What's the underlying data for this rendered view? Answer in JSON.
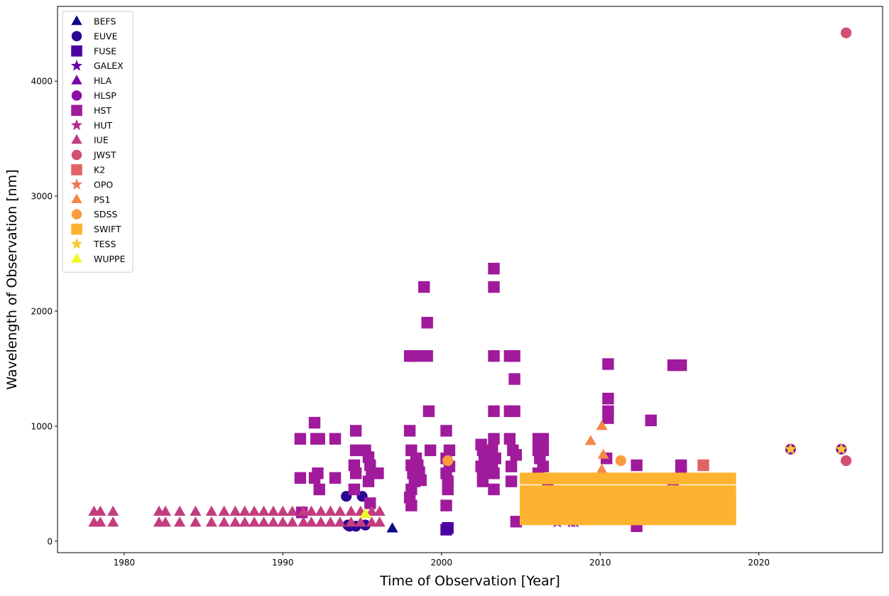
{
  "chart_data": {
    "type": "scatter",
    "title": "",
    "xlabel": "Time of Observation [Year]",
    "ylabel": "Wavelength of Observation [nm]",
    "xlim": [
      1975.8,
      2027.8
    ],
    "ylim": [
      -100,
      4650
    ],
    "xticks": [
      1980,
      1990,
      2000,
      2010,
      2020
    ],
    "yticks": [
      0,
      1000,
      2000,
      3000,
      4000
    ],
    "grid": false,
    "legend_position": "upper-left",
    "series": [
      {
        "name": "BEFS",
        "marker": "triangle",
        "color": "#0d0887",
        "x": [
          1996.9
        ],
        "y": [
          110
        ]
      },
      {
        "name": "EUVE",
        "marker": "circle",
        "color": "#2c0594",
        "x": [
          1994.0,
          1994.2,
          1994.6,
          1995.0,
          1994.1,
          1995.2
        ],
        "y": [
          390,
          130,
          130,
          390,
          140,
          140
        ]
      },
      {
        "name": "FUSE",
        "marker": "square",
        "color": "#4c02a1",
        "x": [
          2000.3,
          2000.4
        ],
        "y": [
          100,
          115
        ]
      },
      {
        "name": "GALEX",
        "marker": "star",
        "color": "#6a00a8",
        "x": [
          2007.3,
          2007.6,
          2008.2,
          2008.4,
          2008.3
        ],
        "y": [
          165,
          230,
          165,
          165,
          230
        ]
      },
      {
        "name": "HLA",
        "marker": "triangle",
        "color": "#7e03a8",
        "x": [],
        "y": []
      },
      {
        "name": "HLSP",
        "marker": "circle",
        "color": "#8f0da4",
        "x": [
          2022.0,
          2025.2
        ],
        "y": [
          800,
          800
        ]
      },
      {
        "name": "HST",
        "marker": "square",
        "color": "#a01a9c",
        "x": [
          1991.1,
          1991.1,
          1991.2,
          1992.0,
          1992.1,
          1992.0,
          1992.3,
          1992.2,
          1992.3,
          1993.3,
          1993.3,
          1994.6,
          1994.6,
          1994.5,
          1994.6,
          1994.5,
          1995.2,
          1995.4,
          1995.5,
          1995.6,
          1995.4,
          1995.5,
          1996.0,
          1998.0,
          1998.1,
          1998.4,
          1998.5,
          1998.6,
          1998.7,
          1998.4,
          1998.0,
          1998.1,
          1998.2,
          1998.3,
          1998.1,
          1998.0,
          1998.1,
          1998.9,
          1999.1,
          1999.1,
          1999.2,
          1999.3,
          2000.3,
          2000.5,
          2000.3,
          2000.5,
          2000.3,
          2000.4,
          2000.4,
          2000.3,
          2002.5,
          2002.6,
          2002.7,
          2002.5,
          2002.6,
          2002.6,
          2003.3,
          2003.3,
          2003.3,
          2003.3,
          2003.3,
          2003.2,
          2003.4,
          2003.2,
          2003.3,
          2003.3,
          2004.3,
          2004.6,
          2004.3,
          2004.6,
          2004.6,
          2004.3,
          2004.5,
          2004.4,
          2004.4,
          2004.7,
          2004.7,
          2006.1,
          2006.4,
          2006.1,
          2006.4,
          2006.2,
          2006.4,
          2006.1,
          2006.7,
          2010.5,
          2010.5,
          2010.5,
          2010.5,
          2010.4,
          2012.3,
          2012.3,
          2013.2,
          2014.6,
          2015.1,
          2015.1,
          2015.1,
          2014.6
        ],
        "y": [
          890,
          550,
          250,
          1030,
          890,
          550,
          890,
          590,
          450,
          890,
          550,
          960,
          790,
          660,
          590,
          450,
          790,
          730,
          660,
          590,
          520,
          330,
          590,
          960,
          790,
          720,
          660,
          600,
          530,
          1610,
          1610,
          660,
          590,
          520,
          450,
          380,
          310,
          2210,
          1900,
          1610,
          1130,
          790,
          960,
          790,
          720,
          650,
          590,
          520,
          450,
          310,
          840,
          790,
          720,
          650,
          590,
          520,
          2370,
          2210,
          1610,
          1130,
          890,
          790,
          720,
          650,
          590,
          450,
          1610,
          1610,
          1130,
          1130,
          1410,
          890,
          790,
          650,
          520,
          750,
          170,
          890,
          890,
          790,
          790,
          720,
          650,
          590,
          520,
          1540,
          1240,
          1130,
          1070,
          720,
          660,
          130,
          1050,
          1530,
          1530,
          660,
          590,
          520
        ]
      },
      {
        "name": "HUT",
        "marker": "star",
        "color": "#b12a90",
        "x": [],
        "y": []
      },
      {
        "name": "IUE",
        "marker": "triangle",
        "color": "#c33d80",
        "x": [
          1978.1,
          1978.5,
          1979.3,
          1982.2,
          1982.6,
          1983.5,
          1984.5,
          1985.5,
          1986.3,
          1987.0,
          1987.6,
          1988.2,
          1988.8,
          1989.4,
          1990.0,
          1990.6,
          1991.3,
          1991.8,
          1992.4,
          1993.0,
          1993.6,
          1994.3,
          1994.9,
          1995.6,
          1996.1,
          1978.1,
          1978.5,
          1979.3,
          1982.2,
          1982.6,
          1983.5,
          1984.5,
          1985.5,
          1986.3,
          1987.0,
          1987.6,
          1988.2,
          1988.8,
          1989.4,
          1990.0,
          1990.6,
          1991.3,
          1991.8,
          1992.4,
          1993.0,
          1993.6,
          1994.3,
          1994.9,
          1995.6,
          1996.1
        ],
        "y": [
          255,
          255,
          255,
          255,
          255,
          255,
          255,
          255,
          255,
          255,
          255,
          255,
          255,
          255,
          255,
          255,
          255,
          255,
          255,
          255,
          255,
          255,
          255,
          255,
          255,
          160,
          160,
          160,
          160,
          160,
          160,
          160,
          160,
          160,
          160,
          160,
          160,
          160,
          160,
          160,
          160,
          160,
          160,
          160,
          160,
          160,
          160,
          160,
          160,
          160
        ]
      },
      {
        "name": "JWST",
        "marker": "circle",
        "color": "#d24f71",
        "x": [
          2025.5,
          2025.5
        ],
        "y": [
          4420,
          700
        ]
      },
      {
        "name": "K2",
        "marker": "square",
        "color": "#e16462",
        "x": [
          2016.5
        ],
        "y": [
          660
        ]
      },
      {
        "name": "OPO",
        "marker": "star",
        "color": "#ec7853",
        "x": [],
        "y": []
      },
      {
        "name": "PS1",
        "marker": "triangle",
        "color": "#f48849",
        "x": [
          2009.4,
          2010.1,
          2010.2,
          2010.1
        ],
        "y": [
          870,
          1000,
          750,
          620
        ]
      },
      {
        "name": "SDSS",
        "marker": "circle",
        "color": "#fb9b3f",
        "x": [
          2000.4,
          2011.3
        ],
        "y": [
          700,
          700
        ]
      },
      {
        "name": "SWIFT",
        "marker": "square",
        "color": "#fdb32f",
        "x": [
          2005.3,
          2005.8,
          2006.3,
          2006.8,
          2007.3,
          2007.8,
          2008.3,
          2008.8,
          2009.3,
          2009.8,
          2010.3,
          2010.8,
          2011.3,
          2011.8,
          2012.3,
          2012.8,
          2013.3,
          2013.8,
          2014.3,
          2014.8,
          2015.3,
          2015.8,
          2016.3,
          2016.8,
          2017.3,
          2017.8,
          2018.2,
          2005.3,
          2005.8,
          2006.3,
          2006.8,
          2007.3,
          2007.8,
          2008.3,
          2008.8,
          2009.3,
          2009.8,
          2010.3,
          2010.8,
          2011.3,
          2011.8,
          2012.3,
          2012.8,
          2013.3,
          2013.8,
          2014.3,
          2014.8,
          2015.3,
          2015.8,
          2016.3,
          2016.8,
          2017.3,
          2017.8,
          2018.2,
          2005.3,
          2005.8,
          2006.3,
          2006.8,
          2007.3,
          2007.8,
          2008.3,
          2008.8,
          2009.3,
          2009.8,
          2010.3,
          2010.8,
          2011.3,
          2011.8,
          2012.3,
          2012.8,
          2013.3,
          2013.8,
          2014.3,
          2014.8,
          2015.3,
          2015.8,
          2016.3,
          2016.8,
          2017.3,
          2017.8,
          2018.2,
          2005.3,
          2005.8,
          2006.3,
          2006.8,
          2007.3,
          2007.8,
          2008.3,
          2008.8,
          2009.3,
          2009.8,
          2010.3,
          2010.8,
          2011.3,
          2011.8,
          2012.3,
          2012.8,
          2013.3,
          2013.8,
          2014.3,
          2014.8,
          2015.3,
          2015.8,
          2016.3,
          2016.8,
          2017.3,
          2017.8,
          2018.2,
          2005.3,
          2005.8,
          2006.3,
          2006.8,
          2007.3,
          2007.8,
          2008.3,
          2008.8,
          2009.3,
          2009.8,
          2010.3,
          2010.8,
          2011.3,
          2011.8,
          2012.3,
          2012.8,
          2013.3,
          2013.8,
          2014.3,
          2014.8,
          2015.3,
          2015.8,
          2016.3,
          2016.8,
          2017.3,
          2017.8,
          2018.2,
          2005.3,
          2005.8,
          2006.3,
          2006.8,
          2007.3,
          2007.8,
          2008.3,
          2008.8,
          2009.3,
          2009.8,
          2010.3,
          2010.8,
          2011.3,
          2011.8,
          2012.3,
          2012.8,
          2013.3,
          2013.8,
          2014.3,
          2014.8,
          2015.3,
          2015.8,
          2016.3,
          2016.8,
          2017.3,
          2017.8,
          2018.2
        ],
        "y": [
          545,
          545,
          545,
          545,
          545,
          545,
          545,
          545,
          545,
          545,
          545,
          545,
          545,
          545,
          545,
          545,
          545,
          545,
          545,
          545,
          545,
          545,
          545,
          545,
          545,
          545,
          545,
          435,
          435,
          435,
          435,
          435,
          435,
          435,
          435,
          435,
          435,
          435,
          435,
          435,
          435,
          435,
          435,
          435,
          435,
          435,
          435,
          435,
          435,
          435,
          435,
          435,
          435,
          435,
          350,
          350,
          350,
          350,
          350,
          350,
          350,
          350,
          350,
          350,
          350,
          350,
          350,
          350,
          350,
          350,
          350,
          350,
          350,
          350,
          350,
          350,
          350,
          350,
          350,
          350,
          350,
          290,
          290,
          290,
          290,
          290,
          290,
          290,
          290,
          290,
          290,
          290,
          290,
          290,
          290,
          290,
          290,
          290,
          290,
          290,
          290,
          290,
          290,
          290,
          290,
          290,
          290,
          290,
          230,
          230,
          230,
          230,
          230,
          230,
          230,
          230,
          230,
          230,
          230,
          230,
          230,
          230,
          230,
          230,
          230,
          230,
          230,
          230,
          230,
          230,
          230,
          230,
          230,
          230,
          230,
          190,
          190,
          190,
          190,
          190,
          190,
          190,
          190,
          190,
          190,
          190,
          190,
          190,
          190,
          190,
          190,
          190,
          190,
          190,
          190,
          190,
          190,
          190,
          190,
          190,
          190,
          190
        ]
      },
      {
        "name": "TESS",
        "marker": "star",
        "color": "#f8c931",
        "x": [
          2022.0,
          2025.2
        ],
        "y": [
          800,
          800
        ]
      },
      {
        "name": "WUPPE",
        "marker": "triangle",
        "color": "#f0f921",
        "x": [
          1995.2
        ],
        "y": [
          235
        ]
      }
    ]
  }
}
